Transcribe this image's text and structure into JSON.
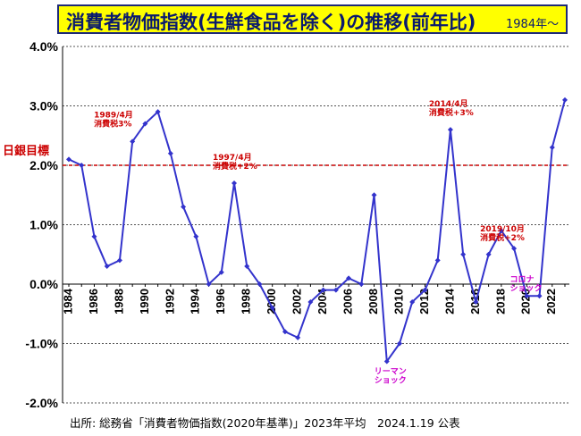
{
  "header": {
    "title": "消費者物価指数(生鮮食品を除く)の推移(前年比)",
    "subtitle": "1984年～"
  },
  "footer": {
    "source": "出所: 総務省「消費者物価指数(2020年基準)」2023年平均　2024.1.19 公表"
  },
  "colors": {
    "title_bg": "#ffff00",
    "title_text": "#0a1a6e",
    "series": "#3333cc",
    "target": "#cc0000",
    "annotation_red": "#cc0000",
    "annotation_pink": "#cc00cc"
  },
  "chart_data": {
    "type": "line",
    "title": "消費者物価指数(生鮮食品を除く)の推移(前年比)",
    "xlabel": "",
    "ylabel": "",
    "xlim": [
      1984,
      2023
    ],
    "ylim": [
      -2.0,
      4.0
    ],
    "grid": "horizontal dotted",
    "x": [
      1984,
      1985,
      1986,
      1987,
      1988,
      1989,
      1990,
      1991,
      1992,
      1993,
      1994,
      1995,
      1996,
      1997,
      1998,
      1999,
      2000,
      2001,
      2002,
      2003,
      2004,
      2005,
      2006,
      2007,
      2008,
      2009,
      2010,
      2011,
      2012,
      2013,
      2014,
      2015,
      2016,
      2017,
      2018,
      2019,
      2020,
      2021,
      2022,
      2023
    ],
    "y": [
      2.1,
      2.0,
      0.8,
      0.3,
      0.4,
      2.4,
      2.7,
      2.9,
      2.2,
      1.3,
      0.8,
      0.0,
      0.2,
      1.7,
      0.3,
      0.0,
      -0.4,
      -0.8,
      -0.9,
      -0.3,
      -0.1,
      -0.1,
      0.1,
      0.0,
      1.5,
      -1.3,
      -1.0,
      -0.3,
      -0.1,
      0.4,
      2.6,
      0.5,
      -0.3,
      0.5,
      0.9,
      0.6,
      -0.2,
      -0.2,
      2.3,
      3.1
    ],
    "yticks": [
      -2.0,
      -1.0,
      0.0,
      1.0,
      2.0,
      3.0,
      4.0
    ],
    "ytick_labels": [
      "-2.0%",
      "-1.0%",
      "0.0%",
      "1.0%",
      "2.0%",
      "3.0%",
      "4.0%"
    ],
    "xticks": [
      1984,
      1986,
      1988,
      1990,
      1992,
      1994,
      1996,
      1998,
      2000,
      2002,
      2004,
      2006,
      2008,
      2010,
      2012,
      2014,
      2016,
      2018,
      2020,
      2022
    ],
    "xtick_labels": [
      "1984",
      "1986",
      "1988",
      "1990",
      "1992",
      "1994",
      "1996",
      "1998",
      "2000",
      "2002",
      "2004",
      "2006",
      "2008",
      "2010",
      "2012",
      "2014",
      "2016",
      "2018",
      "2020",
      "2022"
    ],
    "target": {
      "value": 2.0,
      "label": "日銀目標"
    },
    "annotations": [
      {
        "year": 1989,
        "value": 2.4,
        "lines": [
          "1989/4月",
          "消費税3%"
        ],
        "color": "red"
      },
      {
        "year": 1997,
        "value": 1.7,
        "lines": [
          "1997/4月",
          "消費税+2%"
        ],
        "color": "red"
      },
      {
        "year": 2014,
        "value": 2.6,
        "lines": [
          "2014/4月",
          "消費税+3%"
        ],
        "color": "red"
      },
      {
        "year": 2019,
        "value": 0.6,
        "lines": [
          "2019/10月",
          "消費税+2%"
        ],
        "color": "red"
      },
      {
        "year": 2009,
        "value": -1.3,
        "lines": [
          "リーマン",
          "ショック"
        ],
        "color": "pink"
      },
      {
        "year": 2021,
        "value": -0.2,
        "lines": [
          "コロナ",
          "ショック"
        ],
        "color": "pink"
      }
    ]
  }
}
